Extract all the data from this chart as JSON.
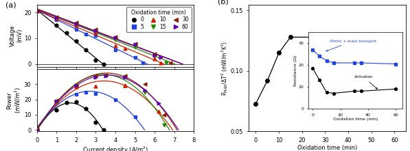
{
  "panel_a": {
    "voltage_data": {
      "0": {
        "x": [
          0,
          1.0,
          1.5,
          2.0,
          2.5,
          3.0,
          3.4
        ],
        "y": [
          20.5,
          15.0,
          12.0,
          9.0,
          5.5,
          1.5,
          0.0
        ]
      },
      "5": {
        "x": [
          0,
          1.0,
          2.0,
          2.5,
          3.0,
          4.0,
          5.0,
          5.4
        ],
        "y": [
          20.5,
          17.2,
          13.5,
          11.5,
          11.0,
          5.5,
          2.5,
          0.5
        ]
      },
      "10": {
        "x": [
          0,
          1.0,
          2.0,
          3.0,
          4.0,
          4.5,
          6.0,
          6.3
        ],
        "y": [
          20.5,
          17.5,
          15.0,
          12.0,
          7.0,
          6.0,
          2.0,
          0.5
        ]
      },
      "15": {
        "x": [
          0,
          1.0,
          2.0,
          3.0,
          4.0,
          5.0,
          6.0,
          6.6
        ],
        "y": [
          20.5,
          18.0,
          15.5,
          13.0,
          9.5,
          6.5,
          3.0,
          0.5
        ]
      },
      "30": {
        "x": [
          0,
          1.0,
          2.0,
          3.0,
          4.0,
          5.0,
          6.0,
          6.8
        ],
        "y": [
          20.5,
          18.2,
          16.0,
          13.5,
          10.5,
          8.0,
          4.0,
          0.5
        ]
      },
      "60": {
        "x": [
          0,
          1.0,
          2.0,
          3.0,
          4.0,
          5.0,
          6.0,
          6.3
        ],
        "y": [
          20.5,
          18.0,
          15.5,
          13.0,
          10.2,
          7.5,
          3.5,
          2.5
        ]
      }
    },
    "power_data": {
      "0": {
        "x": [
          0,
          1.0,
          1.5,
          2.0,
          2.5,
          3.0,
          3.4
        ],
        "y": [
          0,
          13.0,
          18.0,
          18.5,
          14.0,
          5.0,
          0.0
        ]
      },
      "5": {
        "x": [
          0,
          1.0,
          2.0,
          2.5,
          3.0,
          4.0,
          5.0
        ],
        "y": [
          0,
          18.5,
          23.5,
          25.0,
          24.0,
          20.0,
          8.5
        ]
      },
      "10": {
        "x": [
          0,
          1.0,
          2.0,
          3.0,
          4.5,
          4.5,
          6.2
        ],
        "y": [
          0,
          18.5,
          28.5,
          29.0,
          29.5,
          29.5,
          12.0
        ]
      },
      "15": {
        "x": [
          0,
          1.0,
          2.0,
          3.0,
          3.5,
          4.5,
          5.5,
          6.5
        ],
        "y": [
          0,
          18.5,
          29.5,
          34.5,
          35.5,
          34.5,
          25.0,
          3.0
        ]
      },
      "30": {
        "x": [
          0,
          1.0,
          2.0,
          3.0,
          3.5,
          4.5,
          5.5,
          6.5
        ],
        "y": [
          0,
          19.5,
          29.5,
          35.5,
          36.0,
          35.5,
          30.0,
          10.0
        ]
      },
      "60": {
        "x": [
          0,
          1.0,
          2.0,
          3.0,
          3.5,
          4.5,
          5.5,
          6.2
        ],
        "y": [
          0,
          19.0,
          29.5,
          34.5,
          35.5,
          34.5,
          26.0,
          17.5
        ]
      }
    },
    "series_info": [
      {
        "label": "0",
        "color": "black",
        "marker": "o"
      },
      {
        "label": "5",
        "color": "#2244dd",
        "marker": "s"
      },
      {
        "label": "10",
        "color": "#cc2200",
        "marker": "^"
      },
      {
        "label": "15",
        "color": "#228800",
        "marker": "v"
      },
      {
        "label": "30",
        "color": "#882200",
        "marker": "<"
      },
      {
        "label": "60",
        "color": "#6600aa",
        "marker": ">"
      }
    ]
  },
  "panel_b": {
    "main": {
      "x": [
        0,
        5,
        10,
        15,
        30,
        60
      ],
      "y": [
        0.073,
        0.092,
        0.115,
        0.128,
        0.128,
        0.124
      ],
      "color": "black",
      "marker": "o",
      "ylim": [
        0.05,
        0.155
      ],
      "yticks": [
        0.05,
        0.1,
        0.15
      ],
      "xlim": [
        -3,
        65
      ],
      "xticks": [
        0,
        10,
        20,
        30,
        40,
        50,
        60
      ],
      "xlabel": "Oxidation time (min)",
      "ylabel": "P$_{MAX}$/$\\Delta$T$^{2}$ (mW/m$^{2}$K$^{2}$)"
    },
    "inset": {
      "activation": {
        "x": [
          0,
          5,
          10,
          15,
          30,
          35,
          60
        ],
        "y": [
          18.5,
          13.0,
          7.5,
          7.0,
          8.0,
          8.0,
          9.0
        ],
        "color": "black",
        "marker": "o"
      },
      "ohmic": {
        "x": [
          0,
          5,
          10,
          15,
          30,
          35,
          60
        ],
        "y": [
          27.0,
          24.0,
          22.0,
          21.0,
          21.0,
          21.0,
          20.5
        ],
        "color": "#2244dd",
        "marker": "s"
      },
      "xlabel": "Oxidation time (min)",
      "ylabel": "Resistance (Ω)",
      "ylim": [
        0,
        35
      ],
      "yticks": [
        0,
        10,
        20,
        30
      ],
      "xlim": [
        -3,
        65
      ],
      "xticks": [
        0,
        20,
        40,
        60
      ],
      "label_ohmic": "Ohmic + mass transport",
      "label_activation": "Activation"
    }
  }
}
